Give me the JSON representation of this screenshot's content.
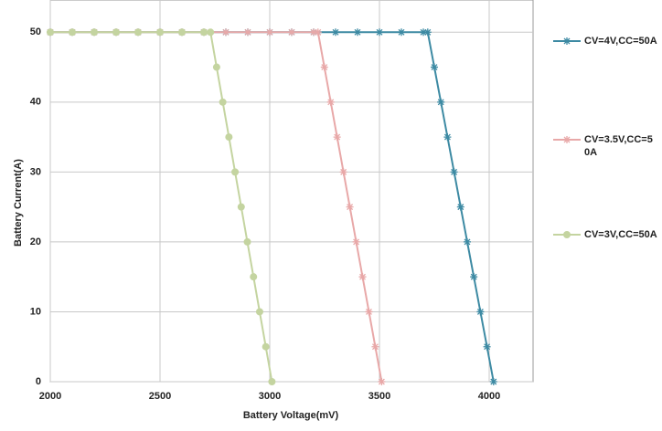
{
  "chart_data": {
    "type": "line",
    "x_label": "Battery Voltage(mV)",
    "y_label": "Battery  Current(A)",
    "xlim": [
      2000,
      4200
    ],
    "xticks": [
      2000,
      2500,
      3000,
      3500,
      4000
    ],
    "ylim": [
      0,
      55
    ],
    "yticks": [
      0,
      10,
      20,
      30,
      40,
      50
    ],
    "grid": true,
    "series": [
      {
        "name": "CV=4V,CC=50A",
        "color": "#3d8aa3",
        "marker": "asterisk",
        "x": [
          2000,
          2100,
          2200,
          2300,
          2400,
          2500,
          2600,
          2700,
          2800,
          2900,
          3000,
          3100,
          3200,
          3300,
          3400,
          3500,
          3600,
          3700,
          3720,
          3750,
          3780,
          3810,
          3840,
          3870,
          3900,
          3930,
          3960,
          3990,
          4020
        ],
        "values": [
          50,
          50,
          50,
          50,
          50,
          50,
          50,
          50,
          50,
          50,
          50,
          50,
          50,
          50,
          50,
          50,
          50,
          50,
          50,
          45,
          40,
          35,
          30,
          25,
          20,
          15,
          10,
          5,
          0
        ]
      },
      {
        "name": "CV=3.5V,CC=50A",
        "color": "#e8a8a8",
        "marker": "asterisk",
        "x": [
          2000,
          2100,
          2200,
          2300,
          2400,
          2500,
          2600,
          2700,
          2800,
          2900,
          3000,
          3100,
          3200,
          3220,
          3249,
          3278,
          3307,
          3336,
          3365,
          3394,
          3423,
          3452,
          3481,
          3510
        ],
        "values": [
          50,
          50,
          50,
          50,
          50,
          50,
          50,
          50,
          50,
          50,
          50,
          50,
          50,
          50,
          45,
          40,
          35,
          30,
          25,
          20,
          15,
          10,
          5,
          0
        ]
      },
      {
        "name": "CV=3V,CC=50A",
        "color": "#c4d4a0",
        "marker": "circle",
        "x": [
          2000,
          2100,
          2200,
          2300,
          2400,
          2500,
          2600,
          2700,
          2730,
          2758,
          2786,
          2814,
          2842,
          2870,
          2898,
          2926,
          2954,
          2982,
          3010
        ],
        "values": [
          50,
          50,
          50,
          50,
          50,
          50,
          50,
          50,
          50,
          45,
          40,
          35,
          30,
          25,
          20,
          15,
          10,
          5,
          0
        ]
      }
    ]
  }
}
